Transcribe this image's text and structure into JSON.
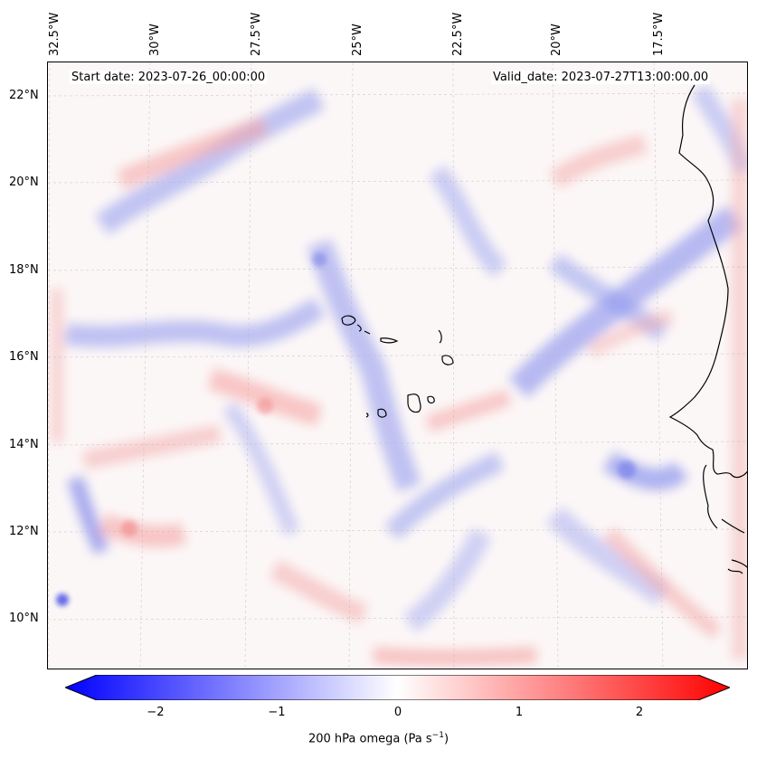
{
  "map": {
    "start_date": "Start date: 2023-07-26_00:00:00",
    "valid_date": "Valid_date: 2023-07-27T13:00:00.00",
    "lon_ticks": [
      "32.5°W",
      "30°W",
      "27.5°W",
      "25°W",
      "22.5°W",
      "20°W",
      "17.5°W"
    ],
    "lat_ticks": [
      "22°N",
      "20°N",
      "18°N",
      "16°N",
      "14°N",
      "12°N",
      "10°N"
    ],
    "lon_range": [
      -33.0,
      -15.5
    ],
    "lat_range": [
      8.8,
      22.7
    ],
    "field": "200 hPa omega",
    "colors": {
      "negative": "#0000ff",
      "zero": "#ffffff",
      "positive": "#ff0000",
      "coast": "#000000"
    }
  },
  "colorbar": {
    "ticks": [
      "−2",
      "−1",
      "0",
      "1",
      "2"
    ],
    "tick_values": [
      -2,
      -1,
      0,
      1,
      2
    ],
    "range": [
      -2.5,
      2.5
    ],
    "label_main": "200 hPa omega (Pa s",
    "label_exp": "−1",
    "label_end": ")"
  }
}
